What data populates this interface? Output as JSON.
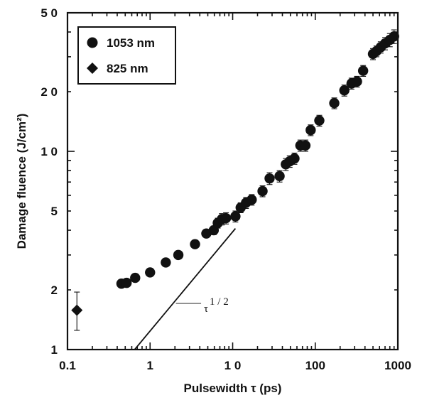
{
  "chart_data": {
    "type": "scatter",
    "title": "",
    "xlabel": "Pulsewidth τ (ps)",
    "ylabel": "Damage fluence (J/cm²)",
    "x_scale": "log",
    "y_scale": "log",
    "xlim": [
      0.1,
      1000
    ],
    "ylim": [
      1,
      50
    ],
    "x_ticks": [
      {
        "value": 0.1,
        "label": "0.1"
      },
      {
        "value": 1,
        "label": "1"
      },
      {
        "value": 10,
        "label": "1 0"
      },
      {
        "value": 100,
        "label": "100"
      },
      {
        "value": 1000,
        "label": "1000"
      }
    ],
    "y_ticks": [
      {
        "value": 1,
        "label": "1"
      },
      {
        "value": 2,
        "label": "2"
      },
      {
        "value": 5,
        "label": "5"
      },
      {
        "value": 10,
        "label": "1 0"
      },
      {
        "value": 20,
        "label": "2 0"
      },
      {
        "value": 50,
        "label": "5 0"
      }
    ],
    "grid": false,
    "legend_position": "top-left",
    "series": [
      {
        "name": "1053 nm",
        "marker": "circle",
        "color": "#111111",
        "points": [
          {
            "x": 0.45,
            "y": 2.15,
            "err": 0.04
          },
          {
            "x": 0.52,
            "y": 2.17,
            "err": 0.04
          },
          {
            "x": 0.66,
            "y": 2.3,
            "err": 0.05
          },
          {
            "x": 1.0,
            "y": 2.45,
            "err": 0.05
          },
          {
            "x": 1.55,
            "y": 2.75,
            "err": 0.06
          },
          {
            "x": 2.2,
            "y": 3.0,
            "err": 0.06
          },
          {
            "x": 3.5,
            "y": 3.4,
            "err": 0.07
          },
          {
            "x": 4.8,
            "y": 3.85,
            "err": 0.15
          },
          {
            "x": 5.9,
            "y": 4.0,
            "err": 0.2
          },
          {
            "x": 6.6,
            "y": 4.35,
            "err": 0.25
          },
          {
            "x": 7.4,
            "y": 4.55,
            "err": 0.3
          },
          {
            "x": 8.3,
            "y": 4.6,
            "err": 0.3
          },
          {
            "x": 10.8,
            "y": 4.7,
            "err": 0.3
          },
          {
            "x": 12.5,
            "y": 5.2,
            "err": 0.3
          },
          {
            "x": 14.5,
            "y": 5.5,
            "err": 0.35
          },
          {
            "x": 17.0,
            "y": 5.7,
            "err": 0.35
          },
          {
            "x": 23.0,
            "y": 6.3,
            "err": 0.4
          },
          {
            "x": 28.0,
            "y": 7.3,
            "err": 0.5
          },
          {
            "x": 37.0,
            "y": 7.5,
            "err": 0.5
          },
          {
            "x": 44.0,
            "y": 8.6,
            "err": 0.6
          },
          {
            "x": 49.0,
            "y": 8.9,
            "err": 0.6
          },
          {
            "x": 56.0,
            "y": 9.2,
            "err": 0.6
          },
          {
            "x": 66.0,
            "y": 10.7,
            "err": 0.7
          },
          {
            "x": 76.0,
            "y": 10.7,
            "err": 0.7
          },
          {
            "x": 88.0,
            "y": 12.8,
            "err": 0.8
          },
          {
            "x": 112.0,
            "y": 14.3,
            "err": 0.9
          },
          {
            "x": 170.0,
            "y": 17.5,
            "err": 1.1
          },
          {
            "x": 225.0,
            "y": 20.3,
            "err": 1.3
          },
          {
            "x": 275.0,
            "y": 22.0,
            "err": 1.4
          },
          {
            "x": 320.0,
            "y": 22.5,
            "err": 1.4
          },
          {
            "x": 380.0,
            "y": 25.5,
            "err": 1.6
          },
          {
            "x": 500.0,
            "y": 31.0,
            "err": 2.0
          },
          {
            "x": 550.0,
            "y": 32.0,
            "err": 2.0
          },
          {
            "x": 620.0,
            "y": 33.5,
            "err": 2.2
          },
          {
            "x": 700.0,
            "y": 35.0,
            "err": 2.5
          },
          {
            "x": 800.0,
            "y": 36.5,
            "err": 2.8
          },
          {
            "x": 900.0,
            "y": 38.0,
            "err": 3.0
          }
        ]
      },
      {
        "name": "825 nm",
        "marker": "diamond",
        "color": "#111111",
        "points": [
          {
            "x": 0.13,
            "y": 1.58,
            "err_low": 0.33,
            "err_high": 0.37
          }
        ]
      }
    ],
    "reference_line": {
      "label": "τ",
      "label_exponent": "1 / 2",
      "slope": 0.5,
      "x_start": 0.65,
      "y_start": 1.0,
      "x_end": 10.8,
      "y_end": 4.08,
      "annotation_x": 2.2,
      "annotation_y": 1.6
    }
  }
}
